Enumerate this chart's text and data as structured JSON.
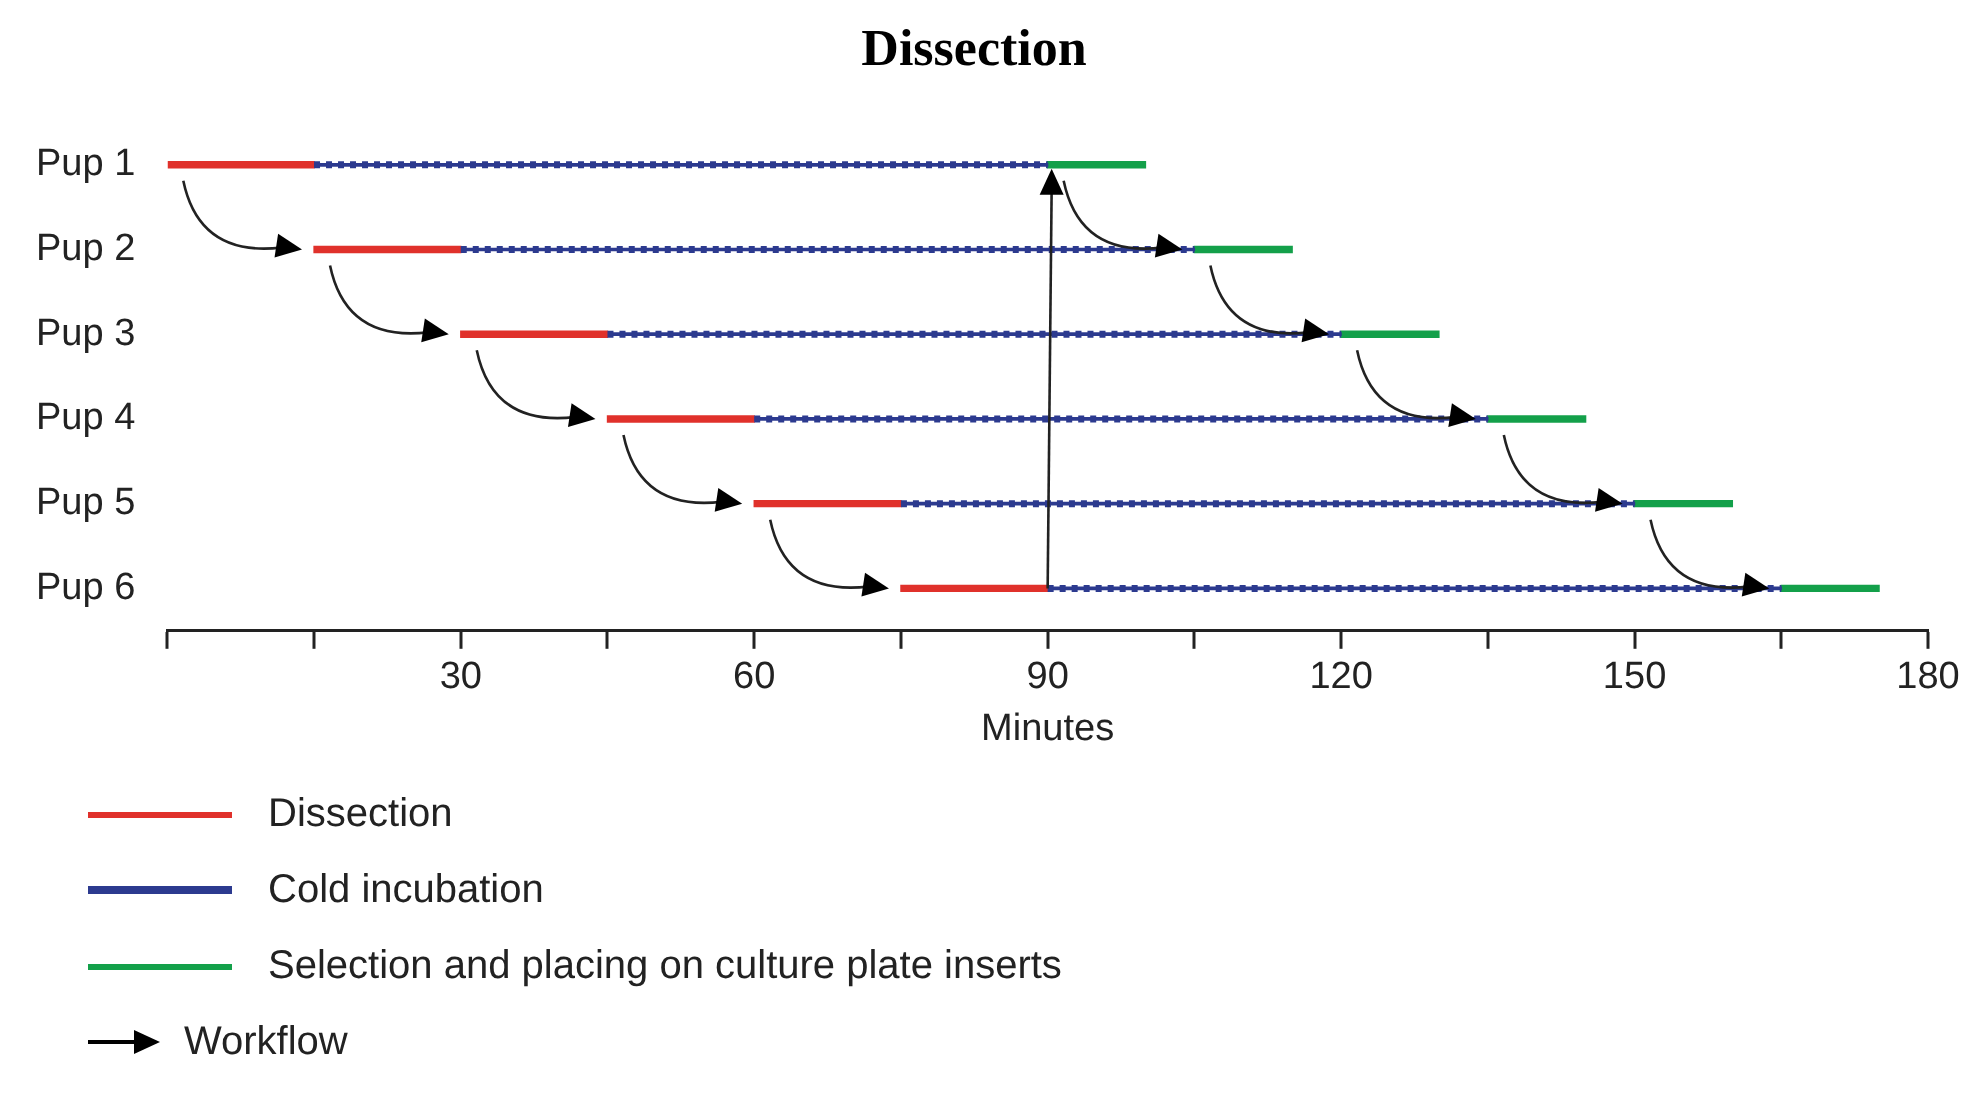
{
  "chart_data": {
    "type": "bar",
    "orientation": "horizontal",
    "title": "Dissection",
    "xlabel": "Minutes",
    "categories": [
      "Pup 1",
      "Pup 2",
      "Pup 3",
      "Pup 4",
      "Pup 5",
      "Pup 6"
    ],
    "series": [
      {
        "name": "Dissection",
        "color": "#e0312b",
        "line_style": "solid",
        "base": [
          0,
          15,
          30,
          45,
          60,
          75
        ],
        "values": [
          15,
          15,
          15,
          15,
          15,
          15
        ]
      },
      {
        "name": "Cold incubation",
        "color": "#2c3a8f",
        "line_style": "dotted",
        "base": [
          15,
          30,
          45,
          60,
          75,
          90
        ],
        "values": [
          75,
          75,
          75,
          75,
          75,
          75
        ]
      },
      {
        "name": "Selection and placing on culture plate inserts",
        "color": "#13a04a",
        "line_style": "solid",
        "base": [
          90,
          105,
          120,
          135,
          150,
          165
        ],
        "values": [
          10,
          10,
          10,
          10,
          10,
          10
        ]
      }
    ],
    "xlim": [
      0,
      180
    ],
    "xticks": [
      {
        "value": 0,
        "label": null
      },
      {
        "value": 15,
        "label": null
      },
      30,
      {
        "value": 45,
        "label": null
      },
      60,
      {
        "value": 75,
        "label": null
      },
      90,
      {
        "value": 105,
        "label": null
      },
      120,
      {
        "value": 135,
        "label": null
      },
      150,
      {
        "value": 165,
        "label": null
      },
      180
    ],
    "grid": false,
    "legend": "bottom",
    "annotations": [
      "Workflow"
    ]
  }
}
